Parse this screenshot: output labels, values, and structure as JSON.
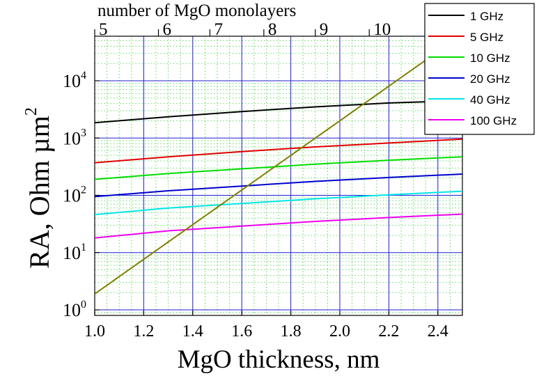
{
  "chart_data": {
    "type": "line",
    "xlabel": "MgO thickness, nm",
    "ylabel": "RA, Ohm µm",
    "ylabel_superscript": "2",
    "top_axis_label": "number of MgO monolayers",
    "xlim": [
      1.0,
      2.5
    ],
    "ylim": [
      0.8,
      60000
    ],
    "y_scale": "log",
    "grid": "major and minor",
    "legend_position": "top-right",
    "x_ticks": [
      "1.0",
      "1.2",
      "1.4",
      "1.6",
      "1.8",
      "2.0",
      "2.2",
      "2.4"
    ],
    "x_tick_values": [
      1.0,
      1.2,
      1.4,
      1.6,
      1.8,
      2.0,
      2.2,
      2.4
    ],
    "y_tick_exponents": [
      0,
      1,
      2,
      3,
      4
    ],
    "top_ticks": [
      {
        "label": "5",
        "x": 1.0
      },
      {
        "label": "6",
        "x": 1.26
      },
      {
        "label": "7",
        "x": 1.47
      },
      {
        "label": "8",
        "x": 1.69
      },
      {
        "label": "9",
        "x": 1.9
      },
      {
        "label": "10",
        "x": 2.12
      }
    ],
    "series": [
      {
        "name": "1 GHz",
        "color": "#000000",
        "x": [
          1.0,
          1.3,
          1.6,
          1.9,
          2.2,
          2.5
        ],
        "values": [
          1850,
          2350,
          2900,
          3500,
          4100,
          4500
        ]
      },
      {
        "name": "5 GHz",
        "color": "#e00000",
        "x": [
          1.0,
          1.3,
          1.6,
          1.9,
          2.2,
          2.5
        ],
        "values": [
          370,
          470,
          580,
          700,
          820,
          960
        ]
      },
      {
        "name": "10 GHz",
        "color": "#00dd00",
        "x": [
          1.0,
          1.3,
          1.6,
          1.9,
          2.2,
          2.5
        ],
        "values": [
          190,
          240,
          290,
          350,
          410,
          470
        ]
      },
      {
        "name": "20 GHz",
        "color": "#0000cc",
        "x": [
          1.0,
          1.3,
          1.6,
          1.9,
          2.2,
          2.5
        ],
        "values": [
          95,
          120,
          145,
          175,
          205,
          235
        ]
      },
      {
        "name": "40 GHz",
        "color": "#00e6e6",
        "x": [
          1.0,
          1.3,
          1.6,
          1.9,
          2.2,
          2.5
        ],
        "values": [
          46,
          60,
          72,
          87,
          102,
          118
        ]
      },
      {
        "name": "100 GHz",
        "color": "#ee00ee",
        "x": [
          1.0,
          1.3,
          1.6,
          1.9,
          2.2,
          2.5
        ],
        "values": [
          18,
          24,
          29,
          35,
          41,
          47
        ]
      },
      {
        "color": "#808000",
        "x": [
          1.0,
          2.5
        ],
        "values": [
          1.9,
          65000
        ]
      }
    ]
  }
}
